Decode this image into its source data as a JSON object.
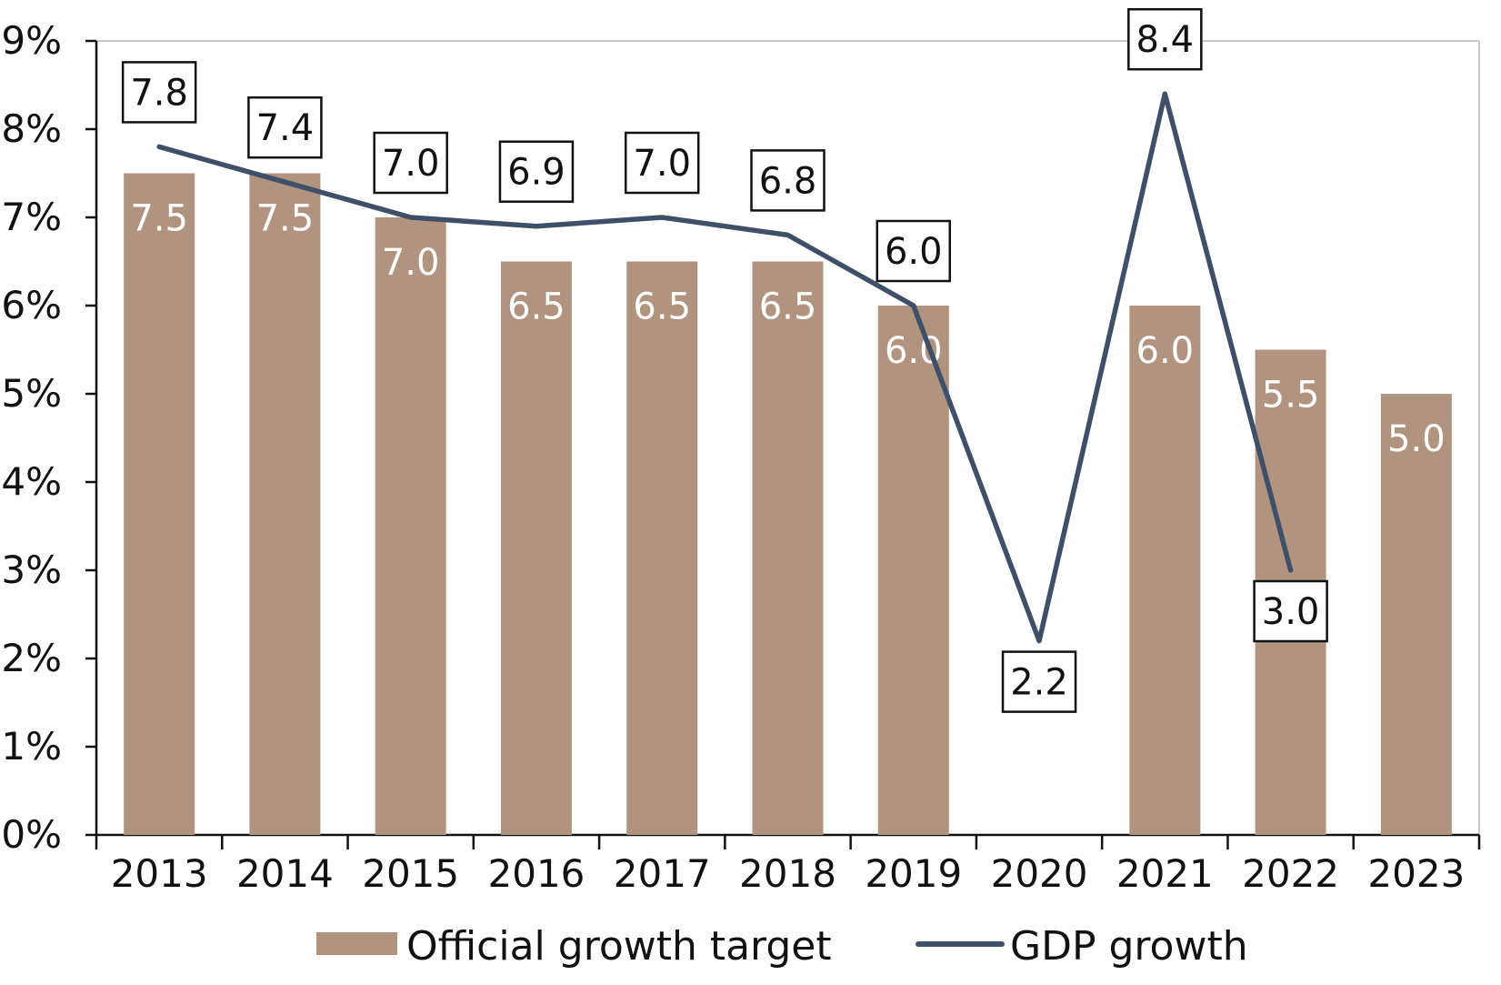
{
  "chart_data": {
    "type": "bar",
    "categories": [
      "2013",
      "2014",
      "2015",
      "2016",
      "2017",
      "2018",
      "2019",
      "2020",
      "2021",
      "2022",
      "2023"
    ],
    "series": [
      {
        "name": "Official growth target",
        "type": "bar",
        "color": "#b09480",
        "values": [
          7.5,
          7.5,
          7.0,
          6.5,
          6.5,
          6.5,
          6.0,
          null,
          6.0,
          5.5,
          5.0
        ],
        "labels": [
          "7.5",
          "7.5",
          "7.0",
          "6.5",
          "6.5",
          "6.5",
          "6.0",
          "",
          "6.0",
          "5.5",
          "5.0"
        ]
      },
      {
        "name": "GDP growth",
        "type": "line",
        "color": "#3f4f68",
        "values": [
          7.8,
          7.4,
          7.0,
          6.9,
          7.0,
          6.8,
          6.0,
          2.2,
          8.4,
          3.0,
          null
        ],
        "labels": [
          "7.8",
          "7.4",
          "7.0",
          "6.9",
          "7.0",
          "6.8",
          "6.0",
          "2.2",
          "8.4",
          "3.0",
          ""
        ],
        "label_position": [
          "above",
          "above",
          "above",
          "above",
          "above",
          "above",
          "above",
          "below",
          "above",
          "below",
          ""
        ]
      }
    ],
    "ylim": [
      0,
      9
    ],
    "yticks": [
      0,
      1,
      2,
      3,
      4,
      5,
      6,
      7,
      8,
      9
    ],
    "ytick_labels": [
      "0%",
      "1%",
      "2%",
      "3%",
      "4%",
      "5%",
      "6%",
      "7%",
      "8%",
      "9%"
    ],
    "title": "",
    "xlabel": "",
    "ylabel": "",
    "grid": false,
    "legend": {
      "placement": "bottom-center",
      "entries": [
        "Official growth target",
        "GDP growth"
      ]
    }
  }
}
